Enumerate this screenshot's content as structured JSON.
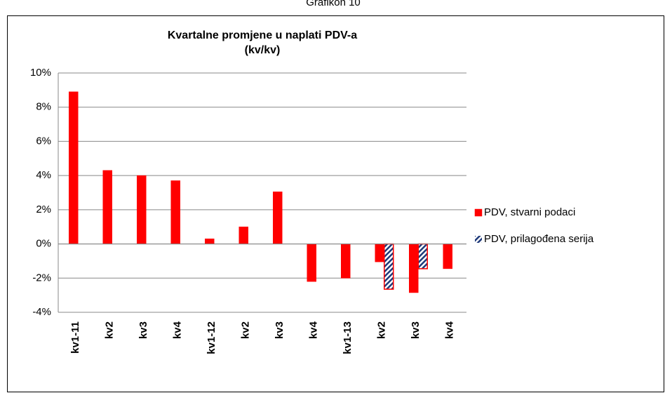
{
  "header": {
    "caption": "Grafikon 10"
  },
  "chart_data": {
    "type": "bar",
    "title": [
      "Kvartalne promjene u naplati PDV-a",
      "(kv/kv)"
    ],
    "categories": [
      "kv1-11",
      "kv2",
      "kv3",
      "kv4",
      "kv1-12",
      "kv2",
      "kv3",
      "kv4",
      "kv1-13",
      "kv2",
      "kv3",
      "kv4"
    ],
    "series": [
      {
        "name": "PDV, stvarni podaci",
        "color": "#ff0000",
        "values": [
          8.9,
          4.3,
          4.0,
          3.7,
          0.3,
          1.0,
          3.05,
          -2.2,
          -2.0,
          -1.05,
          -2.85,
          -1.45
        ]
      },
      {
        "name": "PDV, prilagođena serija",
        "color": "#1f3a7a",
        "values": [
          null,
          null,
          null,
          null,
          null,
          null,
          null,
          null,
          null,
          -2.65,
          -1.45,
          null
        ]
      }
    ],
    "ylim": [
      -4,
      10
    ],
    "yticks": [
      {
        "value": -4,
        "label": "-4%"
      },
      {
        "value": -2,
        "label": "-2%"
      },
      {
        "value": 0,
        "label": "0%"
      },
      {
        "value": 2,
        "label": "2%"
      },
      {
        "value": 4,
        "label": "4%"
      },
      {
        "value": 6,
        "label": "6%"
      },
      {
        "value": 8,
        "label": "8%"
      },
      {
        "value": 10,
        "label": "10%"
      }
    ],
    "grid": true,
    "legend": "right"
  }
}
